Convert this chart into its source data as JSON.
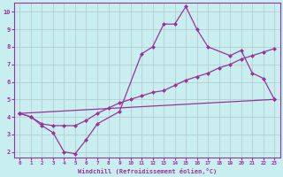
{
  "xlabel": "Windchill (Refroidissement éolien,°C)",
  "bg_color": "#c8eef0",
  "line_color": "#993399",
  "grid_color": "#b0c8cc",
  "xlim": [
    -0.5,
    23.5
  ],
  "ylim": [
    1.7,
    10.5
  ],
  "xticks": [
    0,
    1,
    2,
    3,
    4,
    5,
    6,
    7,
    8,
    9,
    10,
    11,
    12,
    13,
    14,
    15,
    16,
    17,
    18,
    19,
    20,
    21,
    22,
    23
  ],
  "yticks": [
    2,
    3,
    4,
    5,
    6,
    7,
    8,
    9,
    10
  ],
  "line1_x": [
    0,
    1,
    2,
    3,
    4,
    5,
    6,
    7,
    9,
    11,
    12,
    13,
    14,
    15,
    16,
    17,
    19,
    20,
    21,
    22,
    23
  ],
  "line1_y": [
    4.2,
    4.0,
    3.5,
    3.1,
    2.0,
    1.9,
    2.7,
    3.6,
    4.3,
    7.6,
    8.0,
    9.3,
    9.3,
    10.3,
    9.0,
    8.0,
    7.5,
    7.8,
    6.5,
    6.2,
    5.0
  ],
  "line2_x": [
    0,
    1,
    2,
    3,
    4,
    5,
    6,
    7,
    8,
    9,
    10,
    11,
    12,
    13,
    14,
    15,
    16,
    17,
    18,
    19,
    20,
    21,
    22,
    23
  ],
  "line2_y": [
    4.2,
    4.0,
    3.6,
    3.5,
    3.5,
    3.5,
    3.8,
    4.2,
    4.5,
    4.8,
    5.0,
    5.2,
    5.4,
    5.5,
    5.8,
    6.1,
    6.3,
    6.5,
    6.8,
    7.0,
    7.3,
    7.5,
    7.7,
    7.9
  ],
  "line3_x": [
    0,
    23
  ],
  "line3_y": [
    4.2,
    5.0
  ],
  "marker": "D",
  "marker_size": 2.5,
  "line_width": 0.9
}
